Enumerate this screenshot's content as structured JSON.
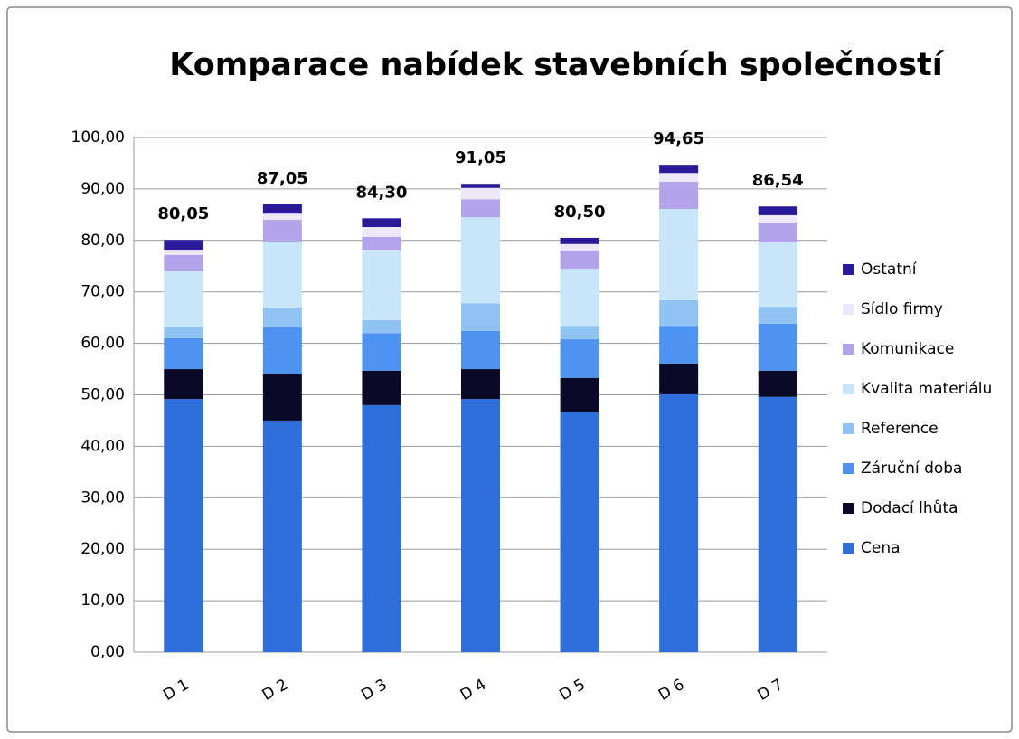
{
  "chart_data": {
    "type": "stacked_bar",
    "title": "Komparace nabídek stavebních společností",
    "categories": [
      "D 1",
      "D 2",
      "D 3",
      "D 4",
      "D 5",
      "D 6",
      "D 7"
    ],
    "series": [
      {
        "name": "Cena",
        "color": "#2e6fdc",
        "values": [
          49.2,
          45.0,
          48.0,
          49.2,
          46.6,
          50.1,
          49.6
        ]
      },
      {
        "name": "Dodací lhůta",
        "color": "#0a0a28",
        "values": [
          5.8,
          9.0,
          6.7,
          5.8,
          6.7,
          6.0,
          5.1
        ]
      },
      {
        "name": "Záruční doba",
        "color": "#4d94f0",
        "values": [
          6.0,
          9.1,
          7.3,
          7.4,
          7.5,
          7.3,
          9.1
        ]
      },
      {
        "name": "Reference",
        "color": "#8fc4f2",
        "values": [
          2.3,
          3.9,
          2.5,
          5.4,
          2.6,
          5.0,
          3.3
        ]
      },
      {
        "name": "Kvalita materiálu",
        "color": "#c8e6fa",
        "values": [
          10.7,
          12.8,
          13.7,
          16.7,
          11.1,
          17.7,
          12.5
        ]
      },
      {
        "name": "Komunikace",
        "color": "#b3a3ea",
        "values": [
          3.2,
          4.2,
          2.5,
          3.5,
          3.5,
          5.3,
          3.9
        ]
      },
      {
        "name": "Sídlo firmy",
        "color": "#ece8f8",
        "values": [
          1.0,
          1.2,
          1.9,
          2.2,
          1.3,
          1.7,
          1.4
        ]
      },
      {
        "name": "Ostatní",
        "color": "#2a1a9a",
        "values": [
          1.9,
          1.8,
          1.7,
          0.8,
          1.2,
          1.6,
          1.7
        ]
      }
    ],
    "totals": [
      80.05,
      87.05,
      84.3,
      91.05,
      80.5,
      94.65,
      86.54
    ],
    "total_labels": [
      "80,05",
      "87,05",
      "84,30",
      "91,05",
      "80,50",
      "94,65",
      "86,54"
    ],
    "ylim": [
      0,
      100
    ],
    "yticks": [
      {
        "value": 0,
        "label": "0,00"
      },
      {
        "value": 10,
        "label": "10,00"
      },
      {
        "value": 20,
        "label": "20,00"
      },
      {
        "value": 30,
        "label": "30,00"
      },
      {
        "value": 40,
        "label": "40,00"
      },
      {
        "value": 50,
        "label": "50,00"
      },
      {
        "value": 60,
        "label": "60,00"
      },
      {
        "value": 70,
        "label": "70,00"
      },
      {
        "value": 80,
        "label": "80,00"
      },
      {
        "value": 90,
        "label": "90,00"
      },
      {
        "value": 100,
        "label": "100,00"
      }
    ],
    "grid": true,
    "legend": "right"
  }
}
